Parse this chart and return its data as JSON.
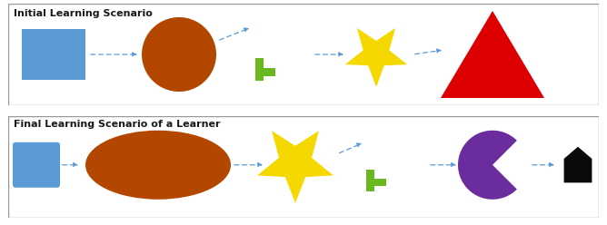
{
  "top_title": "Initial Learning Scenario",
  "bottom_title": "Final Learning Scenario of a Learner",
  "title_fontsize": 8,
  "title_fontweight": "bold",
  "title_color": "#1a1a1a",
  "arrow_color": "#5b9bd5",
  "box_color": "#5b9bd5",
  "ellipse_color": "#b34700",
  "green_color": "#6ab820",
  "star_color": "#f5d800",
  "triangle_color": "#dd0000",
  "purple_color": "#6b2d9e",
  "black_color": "#0a0a0a",
  "border_color": "#999999",
  "panel_bg": "#ffffff",
  "fig_w": 6.68,
  "fig_h": 2.48,
  "dpi": 100
}
